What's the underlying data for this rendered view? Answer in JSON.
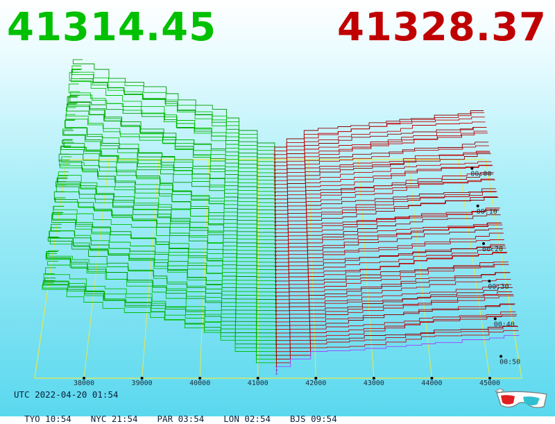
{
  "header": {
    "bid_price": "41314.45",
    "ask_price": "41328.37"
  },
  "colors": {
    "bid": "#00c000",
    "ask": "#c00000",
    "grid": "#e8e850",
    "latest_ask_line": "#a040ff",
    "background_top": "#ffffff",
    "background_bottom": "#5ad8ee"
  },
  "chart_data": {
    "type": "area",
    "title": "",
    "x_axis": {
      "ticks": [
        38000,
        39000,
        40000,
        41000,
        42000,
        43000,
        44000,
        45000
      ],
      "range": [
        37150,
        45550
      ]
    },
    "time_axis": {
      "ticks": [
        "00:00",
        "00:10",
        "00:20",
        "00:30",
        "00:40",
        "00:50"
      ]
    },
    "mid_price": 41321,
    "snapshots": 60,
    "grid": true
  },
  "footer": {
    "utc": "UTC 2022-04-20 01:54",
    "zones": [
      {
        "label": "TYO 10:54"
      },
      {
        "label": "NYC 21:54"
      },
      {
        "label": "PAR 03:54"
      },
      {
        "label": "LON 02:54"
      },
      {
        "label": "BJS 09:54"
      }
    ]
  },
  "icons": {
    "glasses": "3d-glasses-icon"
  }
}
